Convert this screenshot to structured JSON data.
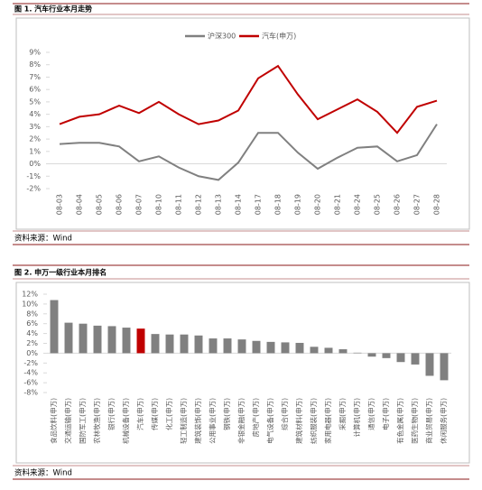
{
  "chart_data": [
    {
      "type": "line",
      "title": "图 1. 汽车行业本月走势",
      "source": "资料来源：Wind",
      "categories": [
        "08-03",
        "08-04",
        "08-05",
        "08-06",
        "08-07",
        "08-10",
        "08-11",
        "08-12",
        "08-13",
        "08-14",
        "08-17",
        "08-18",
        "08-19",
        "08-20",
        "08-21",
        "08-24",
        "08-25",
        "08-26",
        "08-27",
        "08-28"
      ],
      "series": [
        {
          "name": "沪深300",
          "color": "#808080",
          "values": [
            1.6,
            1.7,
            1.7,
            1.4,
            0.2,
            0.6,
            -0.3,
            -1.0,
            -1.3,
            0.1,
            2.5,
            2.5,
            0.9,
            -0.4,
            0.5,
            1.3,
            1.4,
            0.2,
            0.7,
            3.2
          ]
        },
        {
          "name": "汽车(申万)",
          "color": "#c00000",
          "values": [
            3.2,
            3.8,
            4.0,
            4.7,
            4.1,
            5.0,
            4.0,
            3.2,
            3.5,
            4.3,
            6.9,
            7.9,
            5.6,
            3.6,
            4.4,
            5.2,
            4.2,
            2.5,
            4.6,
            5.1
          ]
        }
      ],
      "ylim": [
        -2,
        9
      ],
      "yticks": [
        {
          "value": -2,
          "label": "-2%"
        },
        {
          "value": -1,
          "label": "-1%"
        },
        {
          "value": 0,
          "label": "0%"
        },
        {
          "value": 1,
          "label": "1%"
        },
        {
          "value": 2,
          "label": "2%"
        },
        {
          "value": 3,
          "label": "3%"
        },
        {
          "value": 4,
          "label": "4%"
        },
        {
          "value": 5,
          "label": "5%"
        },
        {
          "value": 6,
          "label": "6%"
        },
        {
          "value": 7,
          "label": "7%"
        },
        {
          "value": 8,
          "label": "8%"
        },
        {
          "value": 9,
          "label": "9%"
        }
      ],
      "legend": "top"
    },
    {
      "type": "bar",
      "title": "图 2. 申万一级行业本月排名",
      "source": "资料来源：Wind",
      "categories": [
        "食品饮料(申万)",
        "交通运输(申万)",
        "国防军工(申万)",
        "农林牧渔(申万)",
        "银行(申万)",
        "机械设备(申万)",
        "汽车(申万)",
        "传媒(申万)",
        "化工(申万)",
        "轻工制造(申万)",
        "建筑装饰(申万)",
        "公用事业(申万)",
        "钢铁(申万)",
        "非银金融(申万)",
        "房地产(申万)",
        "电气设备(申万)",
        "综合(申万)",
        "建筑材料(申万)",
        "纺织服装(申万)",
        "家用电器(申万)",
        "采掘(申万)",
        "计算机(申万)",
        "通信(申万)",
        "电子(申万)",
        "有色金属(申万)",
        "医药生物(申万)",
        "商业贸易(申万)",
        "休闲服务(申万)"
      ],
      "values": [
        10.8,
        6.2,
        6.0,
        5.6,
        5.5,
        5.2,
        5.0,
        3.9,
        3.8,
        3.8,
        3.6,
        3.0,
        3.0,
        2.8,
        2.5,
        2.3,
        2.2,
        2.1,
        1.3,
        1.1,
        0.8,
        0.1,
        -0.7,
        -1.0,
        -1.8,
        -2.3,
        -4.6,
        -5.5
      ],
      "colors": [
        "#808080",
        "#808080",
        "#808080",
        "#808080",
        "#808080",
        "#808080",
        "#c00000",
        "#808080",
        "#808080",
        "#808080",
        "#808080",
        "#808080",
        "#808080",
        "#808080",
        "#808080",
        "#808080",
        "#808080",
        "#808080",
        "#808080",
        "#808080",
        "#808080",
        "#808080",
        "#808080",
        "#808080",
        "#808080",
        "#808080",
        "#808080",
        "#808080"
      ],
      "ylim": [
        -8,
        12
      ],
      "yticks": [
        {
          "value": -8,
          "label": "-8%"
        },
        {
          "value": -6,
          "label": "-6%"
        },
        {
          "value": -4,
          "label": "-4%"
        },
        {
          "value": -2,
          "label": "-2%"
        },
        {
          "value": 0,
          "label": "0%"
        },
        {
          "value": 2,
          "label": "2%"
        },
        {
          "value": 4,
          "label": "4%"
        },
        {
          "value": 6,
          "label": "6%"
        },
        {
          "value": 8,
          "label": "8%"
        },
        {
          "value": 10,
          "label": "10%"
        },
        {
          "value": 12,
          "label": "12%"
        }
      ]
    }
  ]
}
